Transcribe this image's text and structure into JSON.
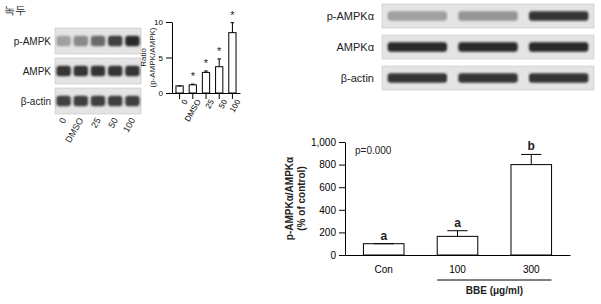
{
  "chart_data": [
    {
      "type": "bar",
      "title": "녹두",
      "categories": [
        "0",
        "DMSO",
        "25",
        "50",
        "100"
      ],
      "values": [
        1.0,
        1.15,
        2.9,
        3.7,
        8.5
      ],
      "errors": [
        0,
        0.1,
        0.2,
        1.1,
        1.4
      ],
      "significance": [
        null,
        "*",
        "*",
        "*",
        "*"
      ],
      "y_label": "Ratio (p-AMPK/AMPK)",
      "ylim": [
        0,
        10
      ],
      "yticks": [
        0,
        5,
        10
      ],
      "color": "#ffffff",
      "blot": {
        "rows": [
          "p-AMPK",
          "AMPK",
          "β-actin"
        ],
        "lanes": [
          "0",
          "DMSO",
          "25",
          "50",
          "100"
        ]
      }
    },
    {
      "type": "bar",
      "categories": [
        "Con",
        "100",
        "300"
      ],
      "values": [
        100,
        165,
        800
      ],
      "errors": [
        0,
        50,
        90
      ],
      "significance": [
        "a",
        "a",
        "b"
      ],
      "annotations": [
        "p=0.000"
      ],
      "x_label": "BBE (μg/ml)",
      "y_label": "p-AMPKα/AMPKα (% of control)",
      "ylim": [
        0,
        1000
      ],
      "yticks": [
        0,
        200,
        400,
        600,
        800,
        {
          "value": 1000,
          "label": "1,000"
        }
      ],
      "color": "#ffffff",
      "blot": {
        "rows": [
          "p-AMPKα",
          "AMPKα",
          "β-actin"
        ]
      }
    }
  ]
}
